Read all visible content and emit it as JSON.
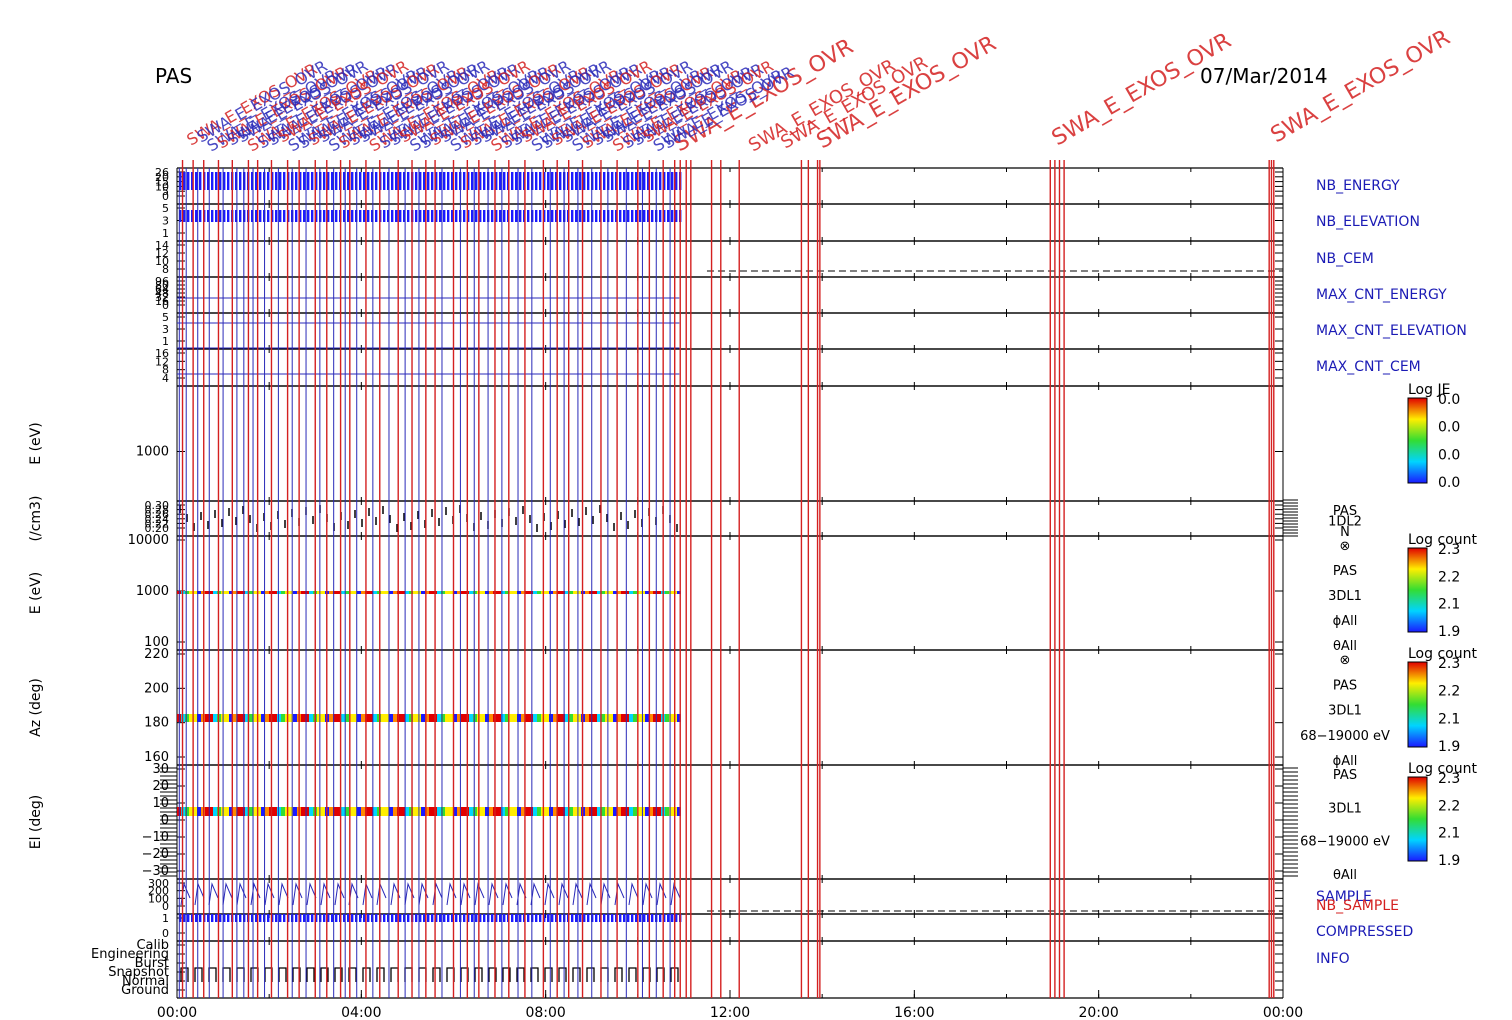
{
  "header": {
    "instrument": "PAS",
    "date": "07/Mar/2014",
    "title_garbled": "SWA_E_EXOS_OVR"
  },
  "chart_data": {
    "type": "line",
    "title": "PAS",
    "date": "07/Mar/2014",
    "x_ticks": [
      "00:00",
      "04:00",
      "08:00",
      "12:00",
      "16:00",
      "20:00",
      "00:00"
    ],
    "xlim_hours": [
      0,
      24
    ],
    "event_label": "SWA_E_EXOS_OVR",
    "panels": [
      {
        "id": "nb_energy",
        "label": "NB_ENERGY",
        "label_color": "#1b1bb5",
        "ticks": [
          "26",
          "20",
          "15",
          "10",
          "5",
          "0"
        ]
      },
      {
        "id": "nb_elevation",
        "label": "NB_ELEVATION",
        "label_color": "#1b1bb5",
        "ticks": [
          "5",
          "3",
          "1"
        ]
      },
      {
        "id": "nb_cem",
        "label": "NB_CEM",
        "label_color": "#1b1bb5",
        "ticks": [
          "14",
          "12",
          "10",
          "8"
        ]
      },
      {
        "id": "max_cnt_energy",
        "label": "MAX_CNT_ENERGY",
        "label_color": "#1b1bb5",
        "ticks": [
          "96",
          "80",
          "64",
          "48",
          "32",
          "16",
          "0"
        ]
      },
      {
        "id": "max_cnt_elevation",
        "label": "MAX_CNT_ELEVATION",
        "label_color": "#1b1bb5",
        "ticks": [
          "5",
          "3",
          "1"
        ]
      },
      {
        "id": "max_cnt_cem",
        "label": "MAX_CNT_CEM",
        "label_color": "#1b1bb5",
        "ticks": [
          "16",
          "12",
          "8",
          "4"
        ]
      },
      {
        "id": "e_1dl2",
        "ylabel": "E (eV)",
        "ticks": [
          "1000"
        ],
        "colorbar": {
          "title": "Log JE",
          "ticks": [
            "0.0",
            "0.0",
            "0.0",
            "0.0"
          ]
        }
      },
      {
        "id": "density",
        "ylabel": "(/cm3)",
        "ticks": [
          "0.30",
          "0.28",
          "0.26",
          "0.24",
          "0.22",
          "0.20"
        ],
        "side_labels": [
          "PAS",
          "1DL2",
          "N"
        ]
      },
      {
        "id": "e_3dl1",
        "ylabel": "E (eV)",
        "ticks": [
          "10000",
          "1000",
          "100"
        ],
        "side_labels": [
          "⊗",
          "PAS",
          "3DL1",
          "ϕAll",
          "θAll"
        ],
        "colorbar": {
          "title": "Log count",
          "ticks": [
            "2.3",
            "2.2",
            "2.1",
            "1.9"
          ]
        }
      },
      {
        "id": "az",
        "ylabel": "Az (deg)",
        "ticks": [
          "220",
          "200",
          "180",
          "160"
        ],
        "side_labels": [
          "⊗",
          "PAS",
          "3DL1",
          "68−19000 eV",
          "ϕAll"
        ],
        "colorbar": {
          "title": "Log count",
          "ticks": [
            "2.3",
            "2.2",
            "2.1",
            "1.9"
          ]
        }
      },
      {
        "id": "el",
        "ylabel": "El (deg)",
        "ticks": [
          "30",
          "20",
          "10",
          "0",
          "−10",
          "−20",
          "−30"
        ],
        "side_labels": [
          "PAS",
          "3DL1",
          "68−19000 eV",
          "θAll"
        ],
        "colorbar": {
          "title": "Log count",
          "ticks": [
            "2.3",
            "2.2",
            "2.1",
            "1.9"
          ]
        }
      },
      {
        "id": "sample",
        "label": "SAMPLE",
        "label_color": "#1b1bb5",
        "label2": "NB_SAMPLE",
        "label2_color": "#d42020",
        "ticks": [
          "300",
          "200",
          "100",
          "0"
        ]
      },
      {
        "id": "compressed",
        "label": "COMPRESSED",
        "label_color": "#1b1bb5",
        "ticks": [
          "1",
          "0"
        ]
      },
      {
        "id": "info",
        "label": "INFO",
        "label_color": "#1b1bb5",
        "ticks": [
          "Calib",
          "Engineering",
          "Burst",
          "Snapshot",
          "Normal",
          "Ground"
        ]
      }
    ],
    "red_event_lines_hours": [
      0.12,
      0.35,
      0.58,
      0.9,
      1.2,
      1.55,
      1.75,
      2.05,
      2.4,
      2.65,
      3.0,
      3.25,
      3.55,
      3.75,
      4.1,
      4.4,
      4.8,
      5.1,
      5.4,
      5.6,
      6.0,
      6.3,
      6.55,
      6.9,
      7.2,
      7.55,
      7.95,
      8.25,
      8.5,
      8.8,
      9.2,
      9.55,
      10.0,
      10.25,
      10.55,
      10.8,
      10.92,
      11.05,
      11.15,
      11.6,
      11.8,
      12.2,
      13.55,
      13.7,
      13.9,
      13.95,
      18.95,
      19.05,
      19.15,
      19.25,
      23.7,
      23.75,
      23.8
    ],
    "blue_data_lines_hours": [
      0.05,
      0.2,
      0.45,
      0.7,
      1.0,
      1.3,
      1.45,
      1.65,
      1.9,
      2.2,
      2.5,
      2.8,
      3.1,
      3.4,
      3.65,
      3.9,
      4.25,
      4.6,
      4.95,
      5.25,
      5.75,
      6.15,
      6.45,
      6.75,
      7.05,
      7.4,
      7.7,
      8.1,
      8.4,
      8.7,
      9.0,
      9.35,
      9.75,
      10.1,
      10.4,
      10.7
    ]
  }
}
